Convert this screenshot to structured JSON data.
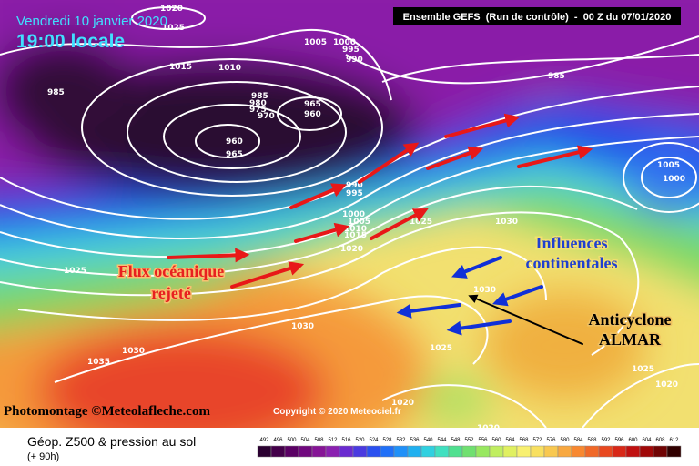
{
  "header": {
    "date": "Vendredi 10 janvier 2020",
    "time": "19:00 locale",
    "run": "Ensemble GEFS  (Run de contrôle)  -  00 Z du 07/01/2020"
  },
  "isobar_labels": [
    "1020",
    "1025",
    "1005",
    "1000",
    "995",
    "990",
    "985",
    "1015",
    "1010",
    "985",
    "980",
    "975",
    "970",
    "965",
    "960",
    "960",
    "965",
    "985",
    "1005",
    "1000",
    "990",
    "995",
    "1000",
    "1005",
    "1010",
    "1015",
    "1020",
    "1025",
    "1030",
    "1025",
    "1030",
    "1030",
    "1030",
    "1035",
    "1025",
    "1025",
    "1020",
    "1020",
    "1020"
  ],
  "annotations": {
    "oceanic": [
      "Flux océanique",
      "rejeté"
    ],
    "continental": [
      "Influences",
      "continentales"
    ],
    "anticyclone": [
      "Anticyclone",
      "ALMAR"
    ]
  },
  "credits": {
    "photomontage": "Photomontage ©Meteolafleche.com",
    "copyright": "Copyright © 2020 Meteociel.fr"
  },
  "footer": {
    "title": "Géop. Z500 & pression au sol",
    "lead": "(+ 90h)"
  },
  "scale": {
    "ticks": [
      492,
      496,
      500,
      504,
      508,
      512,
      516,
      520,
      524,
      528,
      532,
      536,
      540,
      544,
      548,
      552,
      556,
      560,
      564,
      568,
      572,
      576,
      580,
      584,
      588,
      592,
      596,
      600,
      604,
      608,
      612
    ],
    "colors": [
      "#2a0030",
      "#44004a",
      "#5a0064",
      "#70087e",
      "#861496",
      "#8a20b0",
      "#6a2ad0",
      "#4a3ae0",
      "#2a50f0",
      "#2070f8",
      "#2090f8",
      "#20b0f0",
      "#30d0e0",
      "#40e0c0",
      "#50e090",
      "#70e070",
      "#98e860",
      "#c0ee60",
      "#e0f060",
      "#f8f070",
      "#f8e060",
      "#f8c850",
      "#f8a840",
      "#f88830",
      "#f06828",
      "#e84820",
      "#d82818",
      "#c01010",
      "#a00808",
      "#700404",
      "#300000"
    ]
  }
}
